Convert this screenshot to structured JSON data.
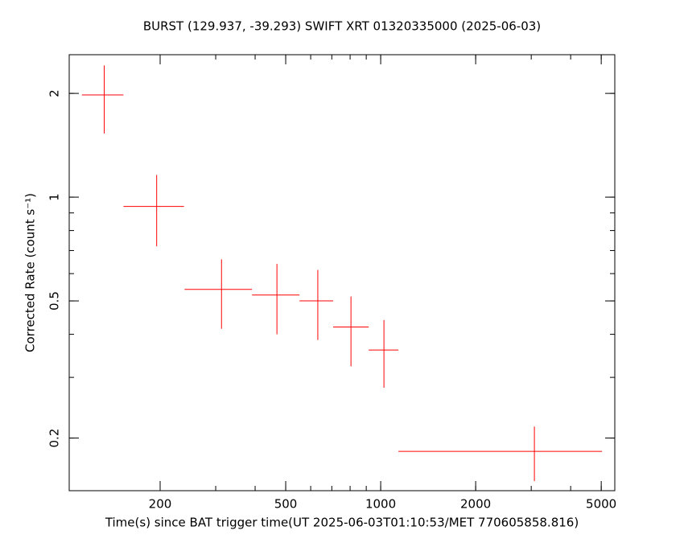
{
  "chart_data": {
    "type": "scatter",
    "title": "BURST (129.937, -39.293) SWIFT XRT 01320335000 (2025-06-03)",
    "x_label": "Time(s) since BAT trigger time(UT 2025-06-03T01:10:53/MET 770605858.816)",
    "y_label": "Corrected Rate (count s⁻¹)",
    "log_x": true,
    "log_y": true,
    "xlim": [
      103,
      5520
    ],
    "ylim": [
      0.1407,
      2.59
    ],
    "xticks": [
      200,
      500,
      1000,
      2000,
      5000
    ],
    "yticks": [
      0.2,
      0.5,
      1,
      2
    ],
    "series": [
      {
        "color": "#ff0000",
        "x": [
          133,
          195,
          313,
          469,
          632,
          805,
          1024,
          3070
        ],
        "xerr_minus": [
          20,
          42,
          74,
          78,
          79,
          98,
          108,
          1932
        ],
        "xerr_plus": [
          20,
          43,
          78,
          84,
          75,
          111,
          114,
          1960
        ],
        "values": [
          1.98,
          0.94,
          0.54,
          0.52,
          0.5,
          0.42,
          0.36,
          0.183
        ],
        "yerr_minus": [
          0.45,
          0.22,
          0.125,
          0.12,
          0.115,
          0.097,
          0.08,
          0.033
        ],
        "yerr_plus": [
          0.43,
          0.22,
          0.12,
          0.12,
          0.115,
          0.095,
          0.08,
          0.033
        ]
      }
    ]
  }
}
